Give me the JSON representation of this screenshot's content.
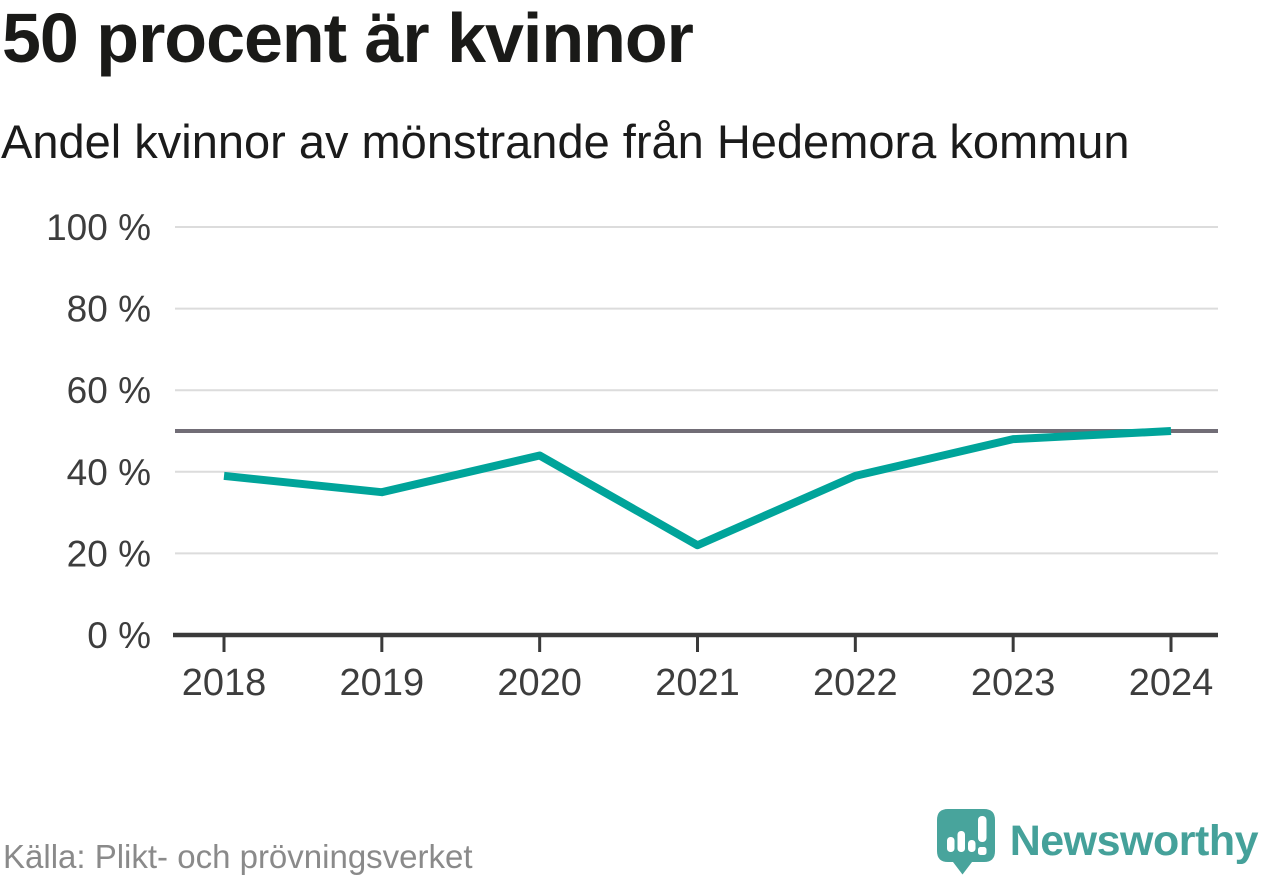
{
  "header": {
    "title": "50 procent är kvinnor",
    "subtitle": "Andel kvinnor av mönstrande från Hedemora kommun"
  },
  "chart_data": {
    "type": "line",
    "title": "50 procent är kvinnor",
    "subtitle": "Andel kvinnor av mönstrande från Hedemora kommun",
    "categories": [
      "2018",
      "2019",
      "2020",
      "2021",
      "2022",
      "2023",
      "2024"
    ],
    "series": [
      {
        "name": "Andel kvinnor av mönstrande",
        "values": [
          39,
          35,
          44,
          22,
          39,
          48,
          50
        ]
      }
    ],
    "unit": "%",
    "ylim": [
      0,
      100
    ],
    "yticks": [
      0,
      20,
      40,
      60,
      80,
      100
    ],
    "ytick_labels": [
      "0 %",
      "20 %",
      "40 %",
      "60 %",
      "80 %",
      "100 %"
    ],
    "reference_line": {
      "value": 50
    },
    "grid": true,
    "legend": "none",
    "colors": {
      "line": "#00a49a",
      "reference": "#716d76",
      "grid": "#dcdcdc",
      "axis": "#3a3a3a",
      "tick_label": "#3d3d3d"
    }
  },
  "footer": {
    "source": "Källa: Plikt- och prövningsverket",
    "brand": "Newsworthy",
    "brand_color": "#45a19a",
    "brand_icon_color": "#48a49c"
  }
}
